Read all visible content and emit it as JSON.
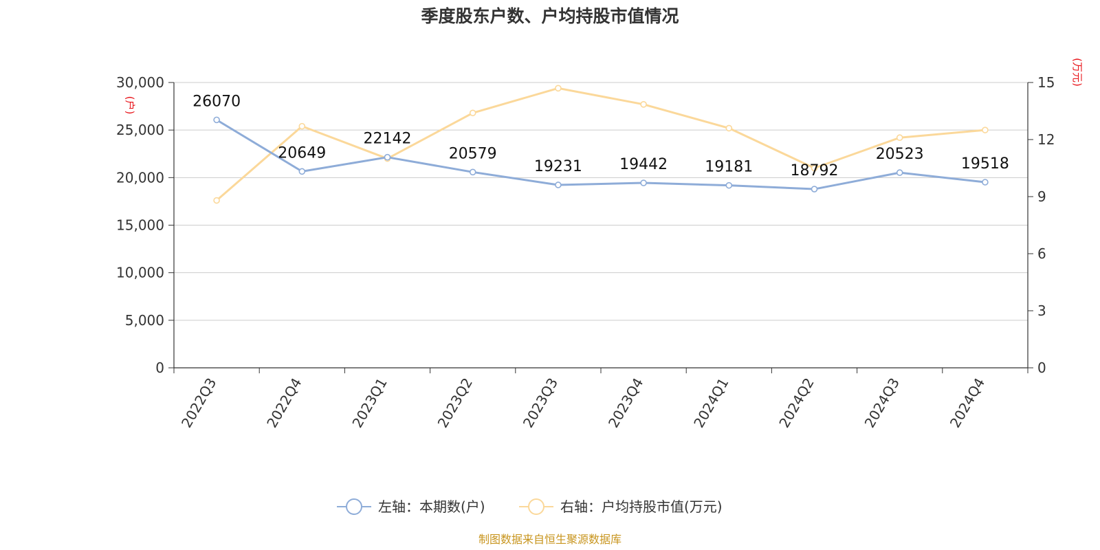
{
  "chart_data": {
    "type": "line",
    "title": "季度股东户数、户均持股市值情况",
    "categories": [
      "2022Q3",
      "2022Q4",
      "2023Q1",
      "2023Q2",
      "2023Q3",
      "2023Q4",
      "2024Q1",
      "2024Q2",
      "2024Q3",
      "2024Q4"
    ],
    "left_axis": {
      "unit": "(户)",
      "range": [
        0,
        30000
      ],
      "ticks": [
        "0",
        "5,000",
        "10,000",
        "15,000",
        "20,000",
        "25,000",
        "30,000"
      ]
    },
    "right_axis": {
      "unit": "(万元)",
      "range": [
        0,
        15
      ],
      "ticks": [
        "0",
        "3",
        "6",
        "9",
        "12",
        "15"
      ]
    },
    "series": [
      {
        "name": "左轴：本期数(户)",
        "axis": "left",
        "color": "#8eacd8",
        "values": [
          26070,
          20649,
          22142,
          20579,
          19231,
          19442,
          19181,
          18792,
          20523,
          19518
        ],
        "labels": [
          "26070",
          "20649",
          "22142",
          "20579",
          "19231",
          "19442",
          "19181",
          "18792",
          "20523",
          "19518"
        ]
      },
      {
        "name": "右轴：户均持股市值(万元)",
        "axis": "right",
        "color": "#fbd89a",
        "values": [
          8.8,
          12.7,
          11.0,
          13.4,
          14.7,
          13.85,
          12.6,
          10.5,
          12.1,
          12.5
        ]
      }
    ],
    "grid": true,
    "legend_position": "bottom-center",
    "source": "制图数据来自恒生聚源数据库"
  }
}
